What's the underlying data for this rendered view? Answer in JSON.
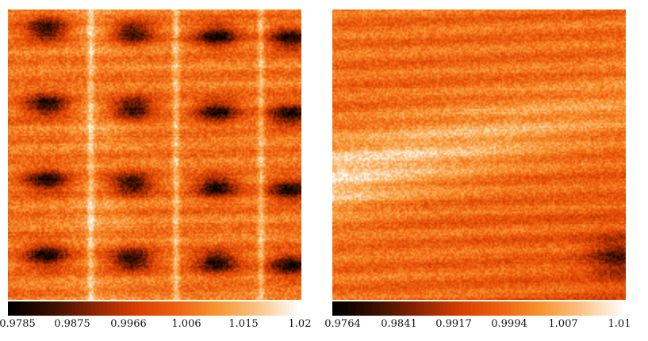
{
  "colormap": {
    "name": "heat",
    "stops": [
      "#000000",
      "#3a0f00",
      "#8a2400",
      "#d63e00",
      "#f06010",
      "#f7952f",
      "#fbc587",
      "#ffffff"
    ]
  },
  "panels": [
    {
      "id": "left",
      "colorbar": {
        "min": 0.9785,
        "max": 1.02,
        "ticks": [
          "0.9785",
          "0.9875",
          "0.9966",
          "1.006",
          "1.015",
          "1.02"
        ]
      }
    },
    {
      "id": "right",
      "colorbar": {
        "min": 0.9764,
        "max": 1.01,
        "ticks": [
          "0.9764",
          "0.9841",
          "0.9917",
          "0.9994",
          "1.007",
          "1.01"
        ]
      }
    }
  ]
}
